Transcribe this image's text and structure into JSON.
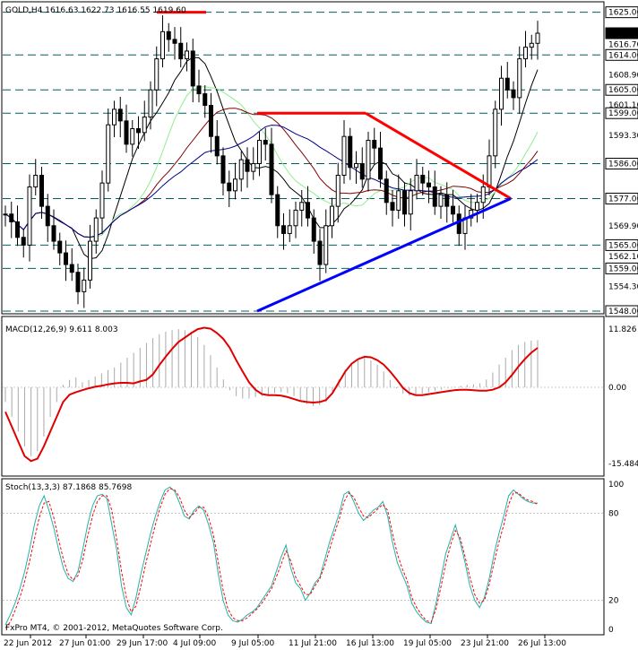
{
  "chart_data": [
    {
      "type": "candlestick",
      "panel": "price",
      "symbol": "GOLD",
      "timeframe": "H4",
      "header": "GOLD,H4  1616.63 1622.73 1616.55 1619.60",
      "ohlc": {
        "open": 1616.63,
        "high": 1622.73,
        "low": 1616.55,
        "close": 1619.6
      },
      "ylim": [
        1548.0,
        1627.0
      ],
      "ytick_labels": [
        "1625.00",
        "1619.60",
        "1616.70",
        "1614.00",
        "1608.90",
        "1605.00",
        "1601.10",
        "1599.00",
        "1593.30",
        "1586.00",
        "1577.00",
        "1569.90",
        "1565.00",
        "1562.10",
        "1559.00",
        "1554.30",
        "1548.00"
      ],
      "highlighted_levels": [
        1625.0,
        1614.0,
        1605.0,
        1599.0,
        1586.0,
        1577.0,
        1565.0,
        1559.0,
        1548.0
      ],
      "last_price": 1619.6,
      "close_series": [
        1573,
        1571,
        1567,
        1565,
        1580,
        1583,
        1575,
        1570,
        1566,
        1563,
        1560,
        1558,
        1553,
        1556,
        1566,
        1572,
        1581,
        1596,
        1600,
        1597,
        1591,
        1595,
        1594,
        1598,
        1605,
        1613,
        1620,
        1618,
        1617,
        1613,
        1615,
        1606,
        1604,
        1601,
        1593,
        1588,
        1581,
        1579,
        1582,
        1587,
        1584,
        1586,
        1592,
        1591,
        1578,
        1570,
        1568,
        1570,
        1574,
        1576,
        1572,
        1566,
        1560,
        1570,
        1575,
        1583,
        1593,
        1585,
        1586,
        1582,
        1592,
        1590,
        1582,
        1576,
        1574,
        1579,
        1573,
        1579,
        1583,
        1581,
        1580,
        1575,
        1578,
        1575,
        1573,
        1568,
        1572,
        1574,
        1576,
        1580,
        1588,
        1600,
        1608,
        1605,
        1603,
        1613,
        1616,
        1617,
        1619.6
      ],
      "trendlines": [
        {
          "color": "#ff0000",
          "points": [
            [
              "29 Jun 17:00",
              1625.0
            ],
            [
              "4 Jul 09:00",
              1625.0
            ]
          ]
        },
        {
          "color": "#ff0000",
          "points": [
            [
              "9 Jul 05:00",
              1599.0
            ],
            [
              "16 Jul 13:00",
              1599.0
            ]
          ]
        },
        {
          "color": "#ff0000",
          "points": [
            [
              "16 Jul 13:00",
              1599.0
            ],
            [
              "24 Jul 09:00",
              1577.0
            ]
          ]
        },
        {
          "color": "#0000ff",
          "points": [
            [
              "9 Jul 05:00",
              1548.0
            ],
            [
              "24 Jul 09:00",
              1577.0
            ]
          ]
        }
      ]
    },
    {
      "type": "histogram+line",
      "panel": "macd",
      "title": "MACD(12,26,9) 9.611 8.003",
      "macd": 9.611,
      "signal": 8.003,
      "ylim": [
        -15.484,
        11.826
      ],
      "ytick_labels": [
        "11.826",
        "0.00",
        "-15.484"
      ],
      "signal_series": [
        -5,
        -8,
        -11,
        -14,
        -15,
        -14.5,
        -12,
        -9,
        -6,
        -3,
        -1.5,
        -1,
        -0.6,
        -0.2,
        0.1,
        0.3,
        0.6,
        0.8,
        0.9,
        0.9,
        0.8,
        1.2,
        1.5,
        2.6,
        4.5,
        6.2,
        7.8,
        9.2,
        10.1,
        11.0,
        11.8,
        12.1,
        11.9,
        11.0,
        9.8,
        8.0,
        5.5,
        3.2,
        1.0,
        -0.5,
        -1.4,
        -1.6,
        -1.6,
        -1.7,
        -2.0,
        -2.4,
        -2.8,
        -3.0,
        -3.1,
        -3.0,
        -2.6,
        -1.2,
        1.0,
        3.2,
        4.8,
        5.7,
        6.2,
        6.1,
        5.5,
        4.6,
        3.2,
        1.6,
        -0.1,
        -1.2,
        -1.6,
        -1.6,
        -1.4,
        -1.2,
        -1.0,
        -0.8,
        -0.6,
        -0.5,
        -0.5,
        -0.6,
        -0.7,
        -0.7,
        -0.5,
        0.0,
        1.0,
        2.5,
        4.2,
        5.7,
        7.0,
        8.0
      ],
      "histogram_values": [
        -3,
        -6,
        -9,
        -12,
        -14,
        -13,
        -10,
        -6,
        -3,
        0.5,
        1.5,
        2.0,
        1.0,
        1.5,
        2.2,
        2.8,
        3.5,
        4.0,
        5.0,
        6.0,
        7.0,
        8.0,
        9.0,
        10.0,
        10.8,
        11.3,
        11.6,
        11.8,
        11.6,
        11.0,
        10.2,
        8.6,
        6.5,
        4.0,
        1.6,
        -0.6,
        -1.8,
        -2.3,
        -2.3,
        -2.0,
        -1.8,
        -1.5,
        -1.2,
        -1.0,
        -1.2,
        -1.8,
        -2.6,
        -3.4,
        -3.8,
        -3.6,
        -3.0,
        -0.8,
        1.6,
        3.6,
        4.8,
        5.6,
        6.0,
        5.5,
        4.6,
        3.2,
        1.5,
        -0.2,
        -1.3,
        -1.7,
        -1.6,
        -1.3,
        -1.0,
        -0.7,
        -0.5,
        -0.2,
        0.1,
        0.3,
        0.5,
        0.6,
        0.8,
        1.6,
        3.0,
        4.6,
        6.0,
        7.5,
        8.6,
        9.2,
        9.5,
        9.6
      ]
    },
    {
      "type": "line",
      "panel": "stochastic",
      "title": "Stoch(13,3,3) 87.1868 85.7698",
      "main": 87.1868,
      "signal": 85.7698,
      "ylim": [
        0,
        100
      ],
      "ytick_labels": [
        "100",
        "80",
        "20",
        "0"
      ],
      "series": [
        {
          "color": "#20b2aa",
          "values": [
            3,
            10,
            18,
            28,
            40,
            55,
            72,
            85,
            92,
            82,
            70,
            55,
            42,
            35,
            33,
            40,
            55,
            72,
            85,
            92,
            93,
            90,
            72,
            55,
            30,
            15,
            10,
            22,
            38,
            52,
            66,
            78,
            88,
            96,
            98,
            95,
            87,
            78,
            76,
            82,
            85,
            82,
            72,
            60,
            38,
            20,
            10,
            6,
            5,
            7,
            10,
            12,
            15,
            20,
            25,
            30,
            40,
            50,
            58,
            42,
            32,
            28,
            20,
            25,
            32,
            36,
            48,
            60,
            70,
            80,
            93,
            95,
            88,
            80,
            75,
            78,
            82,
            84,
            88,
            78,
            60,
            46,
            38,
            30,
            18,
            12,
            8,
            5,
            4,
            18,
            35,
            52,
            62,
            72,
            60,
            46,
            30,
            20,
            15,
            22,
            35,
            52,
            66,
            78,
            92,
            96,
            93,
            90,
            88,
            87,
            87
          ]
        },
        {
          "color": "#ff0000",
          "values": [
            1,
            5,
            13,
            22,
            33,
            47,
            62,
            77,
            87,
            88,
            77,
            62,
            48,
            38,
            34,
            37,
            48,
            64,
            78,
            88,
            92,
            92,
            82,
            62,
            40,
            22,
            12,
            16,
            30,
            45,
            59,
            72,
            84,
            93,
            97,
            96,
            91,
            82,
            77,
            80,
            84,
            84,
            77,
            65,
            46,
            27,
            14,
            8,
            6,
            6,
            8,
            11,
            14,
            18,
            23,
            28,
            36,
            45,
            54,
            47,
            36,
            30,
            24,
            24,
            30,
            35,
            44,
            55,
            66,
            76,
            88,
            94,
            91,
            84,
            78,
            77,
            80,
            83,
            86,
            82,
            66,
            52,
            42,
            34,
            22,
            15,
            10,
            6,
            5,
            14,
            29,
            45,
            58,
            68,
            63,
            50,
            36,
            24,
            18,
            20,
            31,
            46,
            60,
            72,
            86,
            94,
            94,
            91,
            89,
            88,
            86
          ]
        }
      ]
    }
  ],
  "x_labels": [
    "22 Jun 2012",
    "27 Jun 01:00",
    "29 Jun 17:00",
    "4 Jul 09:00",
    "9 Jul 05:00",
    "11 Jul 21:00",
    "16 Jul 13:00",
    "19 Jul 05:00",
    "23 Jul 21:00",
    "26 Jul 13:00"
  ],
  "copyright": "FxPro MT4, © 2001-2012, MetaQuotes Software Corp.",
  "colors": {
    "candle": "#000000",
    "highlight_level": "#006060",
    "red_trend": "#ff0000",
    "blue_trend": "#0000ff",
    "ma_fast": "#000000",
    "ma_mid": "#800000",
    "ma_slow": "#00008b",
    "ma_alt": "#90ee90",
    "macd_hist": "#a9a9a9",
    "macd_signal": "#e00000",
    "stoch_main": "#20b2aa",
    "stoch_signal": "#ff0000"
  }
}
